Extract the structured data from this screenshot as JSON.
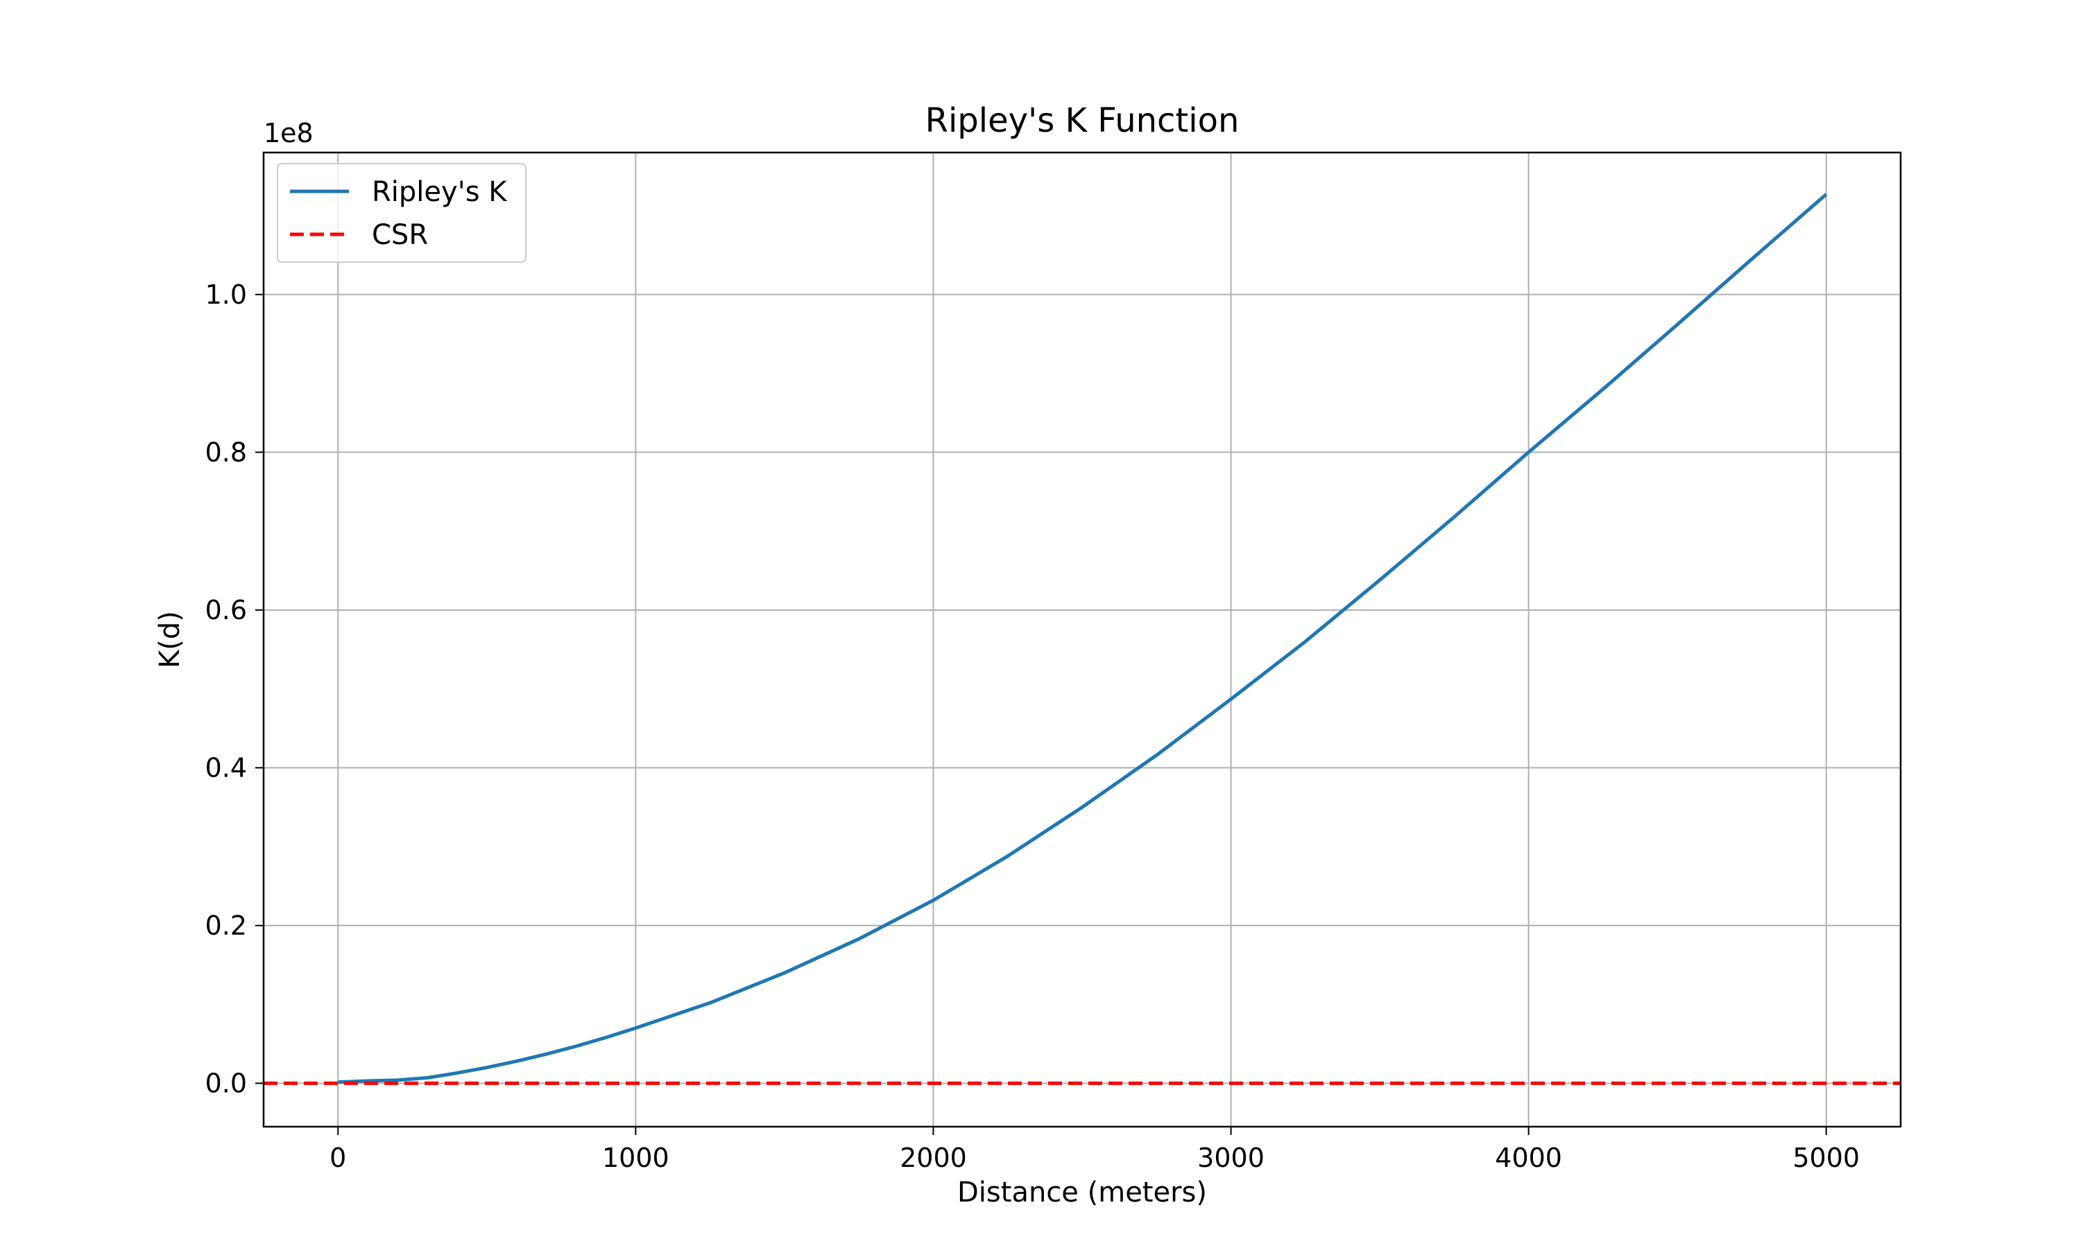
{
  "chart_data": {
    "type": "line",
    "title": "Ripley's K Function",
    "xlabel": "Distance (meters)",
    "ylabel": "K(d)",
    "y_offset_label": "1e8",
    "xlim": [
      -250,
      5250
    ],
    "ylim": [
      -0.055,
      1.18
    ],
    "y_unit_multiplier": 100000000,
    "x_ticks": [
      0,
      1000,
      2000,
      3000,
      4000,
      5000
    ],
    "x_tick_labels": [
      "0",
      "1000",
      "2000",
      "3000",
      "4000",
      "5000"
    ],
    "y_ticks": [
      0.0,
      0.2,
      0.4,
      0.6,
      0.8,
      1.0
    ],
    "y_tick_labels": [
      "0.0",
      "0.2",
      "0.4",
      "0.6",
      "0.8",
      "1.0"
    ],
    "grid": true,
    "legend_position": "top-left",
    "series": [
      {
        "name": "Ripley's K",
        "color": "#1f77b4",
        "style": "solid",
        "x": [
          0,
          100,
          200,
          300,
          400,
          500,
          600,
          700,
          800,
          900,
          1000,
          1250,
          1500,
          1750,
          2000,
          2250,
          2500,
          2750,
          3000,
          3250,
          3500,
          3750,
          4000,
          4250,
          4500,
          4750,
          5000
        ],
        "y": [
          0.0015,
          0.003,
          0.004,
          0.007,
          0.013,
          0.02,
          0.028,
          0.037,
          0.047,
          0.058,
          0.07,
          0.102,
          0.14,
          0.183,
          0.232,
          0.288,
          0.35,
          0.416,
          0.487,
          0.56,
          0.638,
          0.718,
          0.8,
          0.88,
          0.962,
          1.045,
          1.127
        ]
      },
      {
        "name": "CSR",
        "color": "#ff0000",
        "style": "dashed",
        "x": [
          -250,
          5250
        ],
        "y": [
          0.0,
          0.0
        ]
      }
    ]
  }
}
